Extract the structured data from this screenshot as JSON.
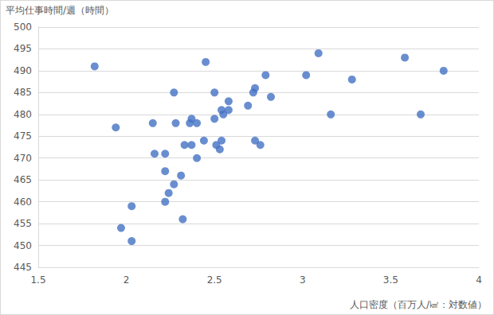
{
  "chart_data": {
    "type": "scatter",
    "y_label": "平均仕事時間/週（時間）",
    "x_label": "人口密度（百万人/㎢：対数値）",
    "x": [
      1.82,
      1.94,
      1.97,
      2.03,
      2.03,
      2.15,
      2.16,
      2.22,
      2.22,
      2.24,
      2.22,
      2.27,
      2.28,
      2.27,
      2.31,
      2.32,
      2.33,
      2.36,
      2.37,
      2.37,
      2.4,
      2.4,
      2.44,
      2.45,
      2.5,
      2.5,
      2.51,
      2.53,
      2.54,
      2.54,
      2.55,
      2.58,
      2.58,
      2.69,
      2.72,
      2.73,
      2.73,
      2.76,
      2.79,
      2.82,
      3.02,
      3.09,
      3.16,
      3.28,
      3.58,
      3.67,
      3.8
    ],
    "values": [
      491,
      477,
      454,
      459,
      451,
      478,
      471,
      471,
      467,
      462,
      460,
      485,
      478,
      464,
      466,
      456,
      473,
      478,
      479,
      473,
      478,
      470,
      474,
      492,
      485,
      479,
      473,
      472,
      481,
      474,
      480,
      483,
      481,
      482,
      485,
      486,
      474,
      473,
      489,
      484,
      489,
      494,
      480,
      488,
      493,
      480,
      490
    ],
    "color": "#4472c4",
    "marker": "circle",
    "xlim": [
      1.5,
      4
    ],
    "xticks": [
      1.5,
      2,
      2.5,
      3,
      3.5,
      4
    ],
    "ylim": [
      445,
      500
    ],
    "yticks": [
      445,
      450,
      455,
      460,
      465,
      470,
      475,
      480,
      485,
      490,
      495,
      500
    ],
    "grid": true
  }
}
